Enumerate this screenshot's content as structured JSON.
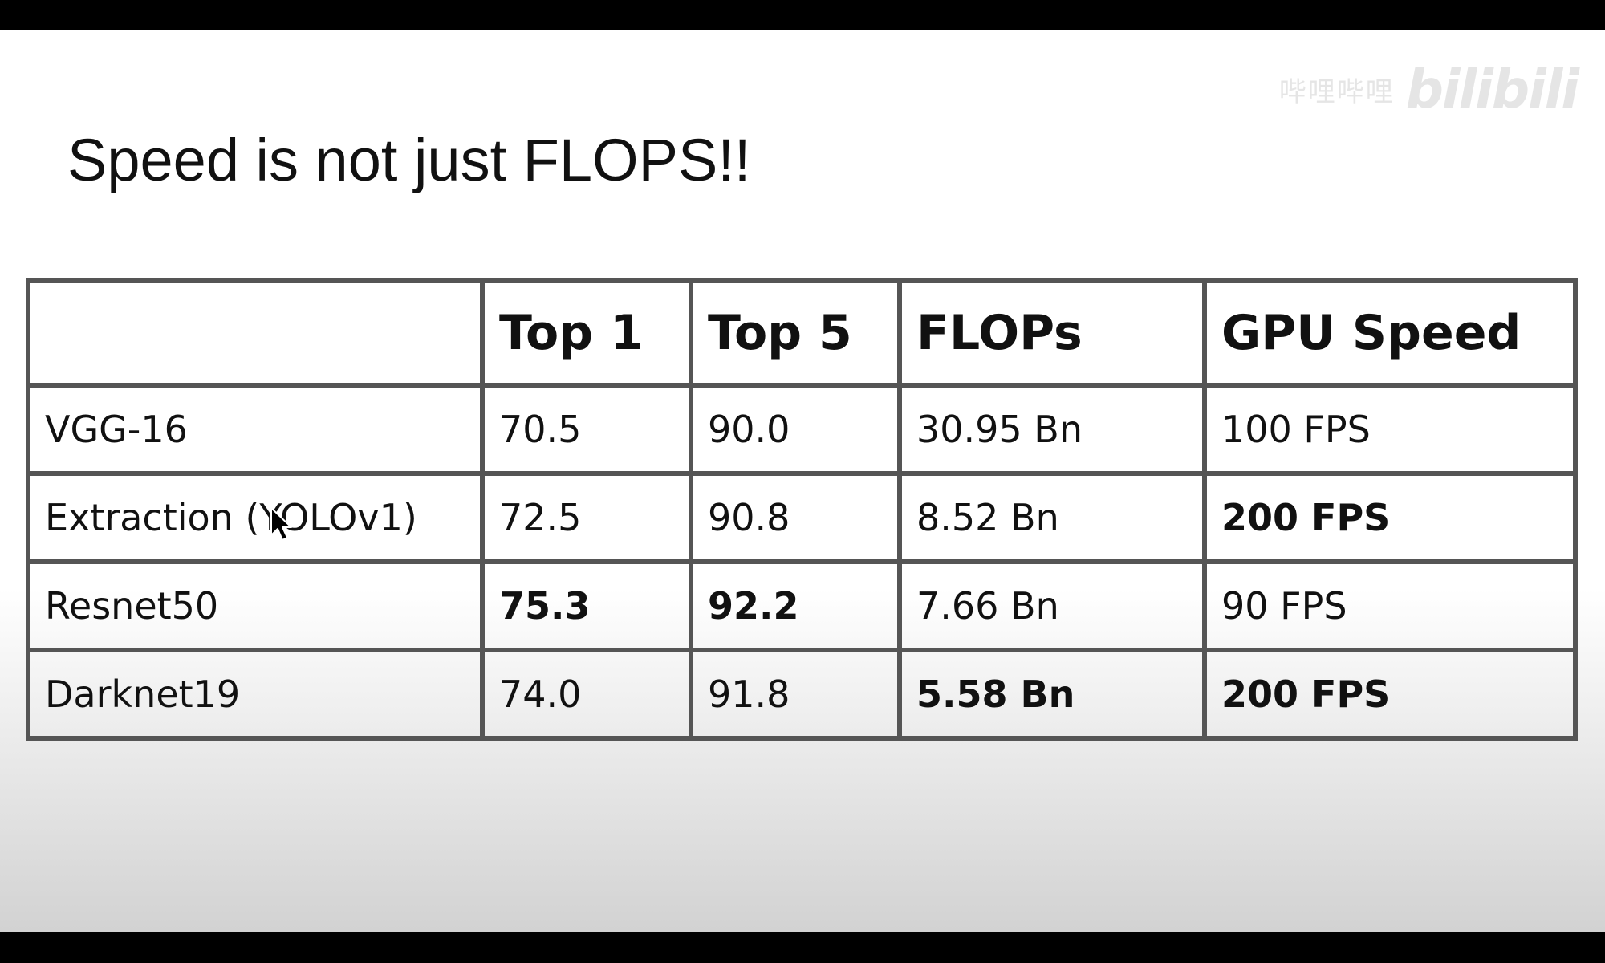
{
  "slide": {
    "title": "Speed is not just FLOPS!!",
    "watermark_text": "哔哩哔哩",
    "watermark_logo": "bilibili"
  },
  "table": {
    "headers": [
      "",
      "Top 1",
      "Top 5",
      "FLOPs",
      "GPU Speed"
    ],
    "rows": [
      {
        "model": "VGG-16",
        "top1": "70.5",
        "top5": "90.0",
        "flops": "30.95 Bn",
        "gpu_speed": "100 FPS",
        "bold": []
      },
      {
        "model": "Extraction (YOLOv1)",
        "top1": "72.5",
        "top5": "90.8",
        "flops": "8.52 Bn",
        "gpu_speed": "200 FPS",
        "bold": [
          "gpu_speed"
        ]
      },
      {
        "model": "Resnet50",
        "top1": "75.3",
        "top5": "92.2",
        "flops": "7.66 Bn",
        "gpu_speed": "90 FPS",
        "bold": [
          "top1",
          "top5"
        ]
      },
      {
        "model": "Darknet19",
        "top1": "74.0",
        "top5": "91.8",
        "flops": "5.58 Bn",
        "gpu_speed": "200 FPS",
        "bold": [
          "flops",
          "gpu_speed"
        ]
      }
    ]
  },
  "controls": {
    "icons": [
      "arrow-left-icon",
      "pen-icon",
      "slide-icon",
      "more-icon",
      "arrow-right-icon"
    ]
  },
  "colors": {
    "table_border": "#555555",
    "text": "#111111",
    "letterbox": "#000000"
  }
}
